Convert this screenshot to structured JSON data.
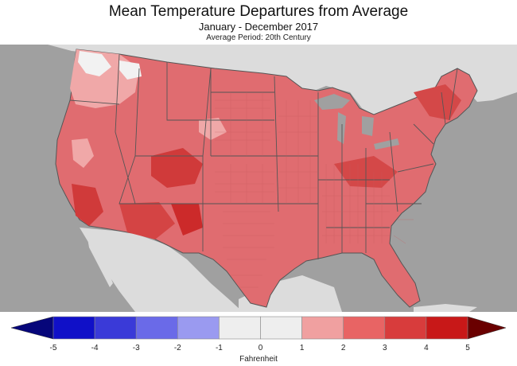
{
  "title": "Mean Temperature Departures from Average",
  "subtitle": "January - December 2017",
  "period": "Average Period: 20th Century",
  "legend": {
    "unit": "Fahrenheit",
    "ticks": [
      "-5",
      "-4",
      "-3",
      "-2",
      "-1",
      "0",
      "1",
      "2",
      "3",
      "4",
      "5"
    ],
    "bins": [
      {
        "color": "#1010c8"
      },
      {
        "color": "#3a3ad8"
      },
      {
        "color": "#6a6ae8"
      },
      {
        "color": "#9a9af0"
      },
      {
        "color": "#eeeeee"
      },
      {
        "color": "#eeeeee"
      },
      {
        "color": "#f0a0a0"
      },
      {
        "color": "#e86464"
      },
      {
        "color": "#d83c3c"
      },
      {
        "color": "#c81818"
      }
    ],
    "low_arrow_color": "#06067a",
    "high_arrow_color": "#6a0000"
  },
  "colors": {
    "ocean": "#a0a0a0",
    "land_outside": "#dcdcdc",
    "us_base": "#e06c70",
    "light_region": "#f0a8a8",
    "white_region": "#f2f2f2",
    "dark_region": "#c82020",
    "state_border": "#555555"
  }
}
